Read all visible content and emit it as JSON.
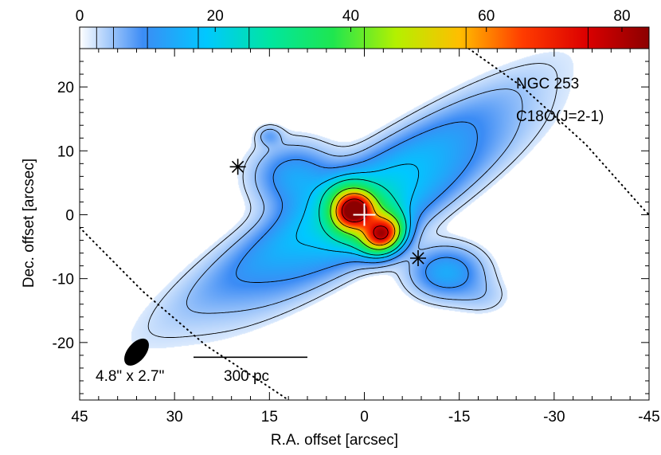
{
  "chart_data": {
    "type": "heatmap",
    "title": "",
    "xlabel": "R.A. offset [arcsec]",
    "ylabel": "Dec. offset [arcsec]",
    "xlim": [
      45,
      -45
    ],
    "ylim": [
      -29,
      26
    ],
    "x_ticks": [
      45,
      30,
      15,
      0,
      -15,
      -30,
      -45
    ],
    "x_tick_labels": [
      "45",
      "30",
      "15",
      "0",
      "-15",
      "-30",
      "-45"
    ],
    "y_ticks": [
      20,
      10,
      0,
      -10,
      -20
    ],
    "y_tick_labels": [
      "20",
      "10",
      "0",
      "-10",
      "-20"
    ],
    "colorbar": {
      "min": 0,
      "max": 84,
      "ticks": [
        0,
        20,
        40,
        60,
        80
      ],
      "tick_labels": [
        "0",
        "20",
        "40",
        "60",
        "80"
      ],
      "contour_levels": [
        2.5,
        5,
        10,
        17.5,
        25,
        42,
        57,
        75
      ],
      "colormap": [
        "#ffffff",
        "#3c8cf5",
        "#00c8ff",
        "#00e6a0",
        "#1ee650",
        "#b4f000",
        "#ffbe00",
        "#ff3c00",
        "#dc0000",
        "#8c0000"
      ]
    },
    "annotations": {
      "object": "NGC 253",
      "line": "C18O(J=2-1)",
      "beam_label": "4.8\" x 2.7\"",
      "scale_label": "300 pc"
    },
    "beam": {
      "x": 36,
      "y": -21.5,
      "major": 4.8,
      "minor": 2.7,
      "pa_deg": 50
    },
    "scale_bar": {
      "x_start": 27,
      "x_end": 9,
      "y": -22.3
    },
    "stars": [
      {
        "x": 20,
        "y": 7.5
      },
      {
        "x": -8.5,
        "y": -6.8
      }
    ],
    "center_marker": {
      "x": 0,
      "y": 0
    },
    "dotted_curves": [
      [
        [
          45,
          -2
        ],
        [
          35,
          -12
        ],
        [
          25,
          -20.5
        ],
        [
          15,
          -27
        ],
        [
          12,
          -29
        ]
      ],
      [
        [
          -16.5,
          26
        ],
        [
          -25,
          20
        ],
        [
          -35,
          11
        ],
        [
          -44,
          1
        ],
        [
          -45,
          0
        ]
      ]
    ],
    "emission_components": [
      {
        "x": 15,
        "y": 12.4,
        "sx": 1.4,
        "sy": 1.1,
        "amp": 6,
        "angle": 0
      },
      {
        "x": 2.5,
        "y": 2.5,
        "sx": 19,
        "sy": 3.2,
        "amp": 17,
        "angle": -33
      },
      {
        "x": -3,
        "y": -0.5,
        "sx": 16,
        "sy": 3.1,
        "amp": 13,
        "angle": -33
      },
      {
        "x": 11,
        "y": 6,
        "sx": 4.5,
        "sy": 3.5,
        "amp": 13,
        "angle": 0
      },
      {
        "x": 3.5,
        "y": 3.5,
        "sx": 2.5,
        "sy": 1.8,
        "amp": 12,
        "angle": -30
      },
      {
        "x": 1.8,
        "y": 0.8,
        "sx": 2.2,
        "sy": 1.8,
        "amp": 60,
        "angle": -30
      },
      {
        "x": -3,
        "y": -3.2,
        "sx": 2.3,
        "sy": 1.9,
        "amp": 62,
        "angle": -30
      },
      {
        "x": 0,
        "y": -1,
        "sx": 3.5,
        "sy": 2.5,
        "amp": 20,
        "angle": -30
      },
      {
        "x": -13,
        "y": -9,
        "sx": 4,
        "sy": 2.8,
        "amp": 14,
        "angle": 0
      },
      {
        "x": -19,
        "y": -13,
        "sx": 3,
        "sy": 2,
        "amp": 3,
        "angle": 0
      }
    ]
  }
}
